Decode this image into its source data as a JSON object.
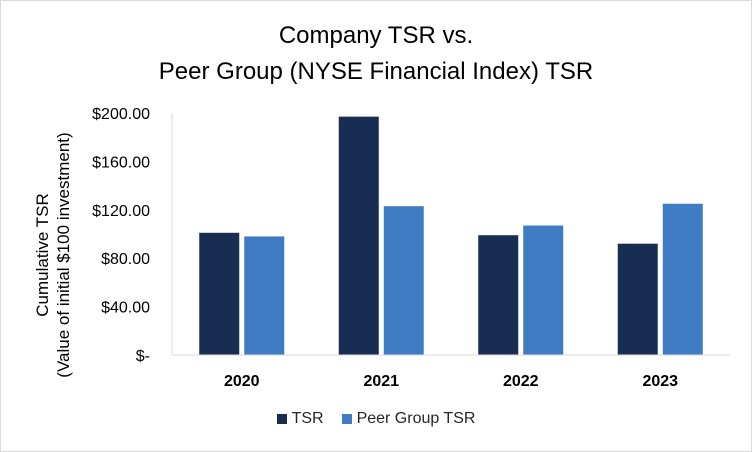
{
  "chart_data": {
    "type": "bar",
    "title_lines": [
      "Company TSR vs.",
      "Peer Group (NYSE Financial Index) TSR"
    ],
    "ylabel_lines": [
      "Cumulative TSR",
      "(Value of initial $100 investment)"
    ],
    "xlabel": "",
    "categories": [
      "2020",
      "2021",
      "2022",
      "2023"
    ],
    "series": [
      {
        "name": "TSR",
        "values": [
          101,
          197,
          99,
          92
        ],
        "color": "#172d52"
      },
      {
        "name": "Peer Group TSR",
        "values": [
          98,
          123,
          107,
          125
        ],
        "color": "#3f7cc3"
      }
    ],
    "ylim": [
      0,
      200
    ],
    "yticks": [
      0,
      40,
      80,
      120,
      160,
      200
    ],
    "ytick_labels": [
      "$-",
      "$40.00",
      "$80.00",
      "$120.00",
      "$160.00",
      "$200.00"
    ],
    "grid": false,
    "legend_position": "bottom"
  }
}
